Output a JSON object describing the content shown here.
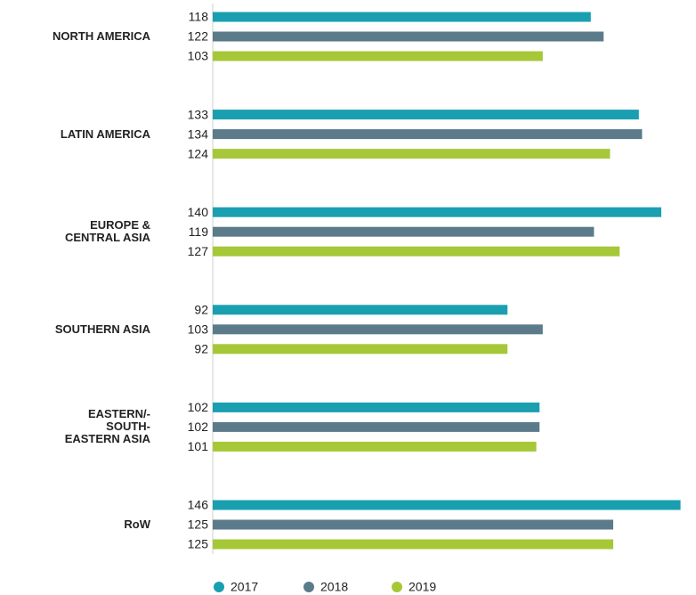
{
  "chart_data": {
    "type": "barh",
    "categories": [
      "NORTH AMERICA",
      "LATIN AMERICA",
      "EUROPE &\nCENTRAL ASIA",
      "SOUTHERN ASIA",
      "EASTERN/-\nSOUTH-\nEASTERN ASIA",
      "RoW"
    ],
    "series": [
      {
        "name": "2017",
        "color": "#1a9fb0",
        "values": [
          118,
          133,
          140,
          92,
          102,
          146
        ]
      },
      {
        "name": "2018",
        "color": "#5b7b8b",
        "values": [
          122,
          134,
          119,
          103,
          102,
          125
        ]
      },
      {
        "name": "2019",
        "color": "#a6c838",
        "values": [
          103,
          124,
          127,
          92,
          101,
          125
        ]
      }
    ],
    "xlim": [
      0,
      150
    ]
  }
}
